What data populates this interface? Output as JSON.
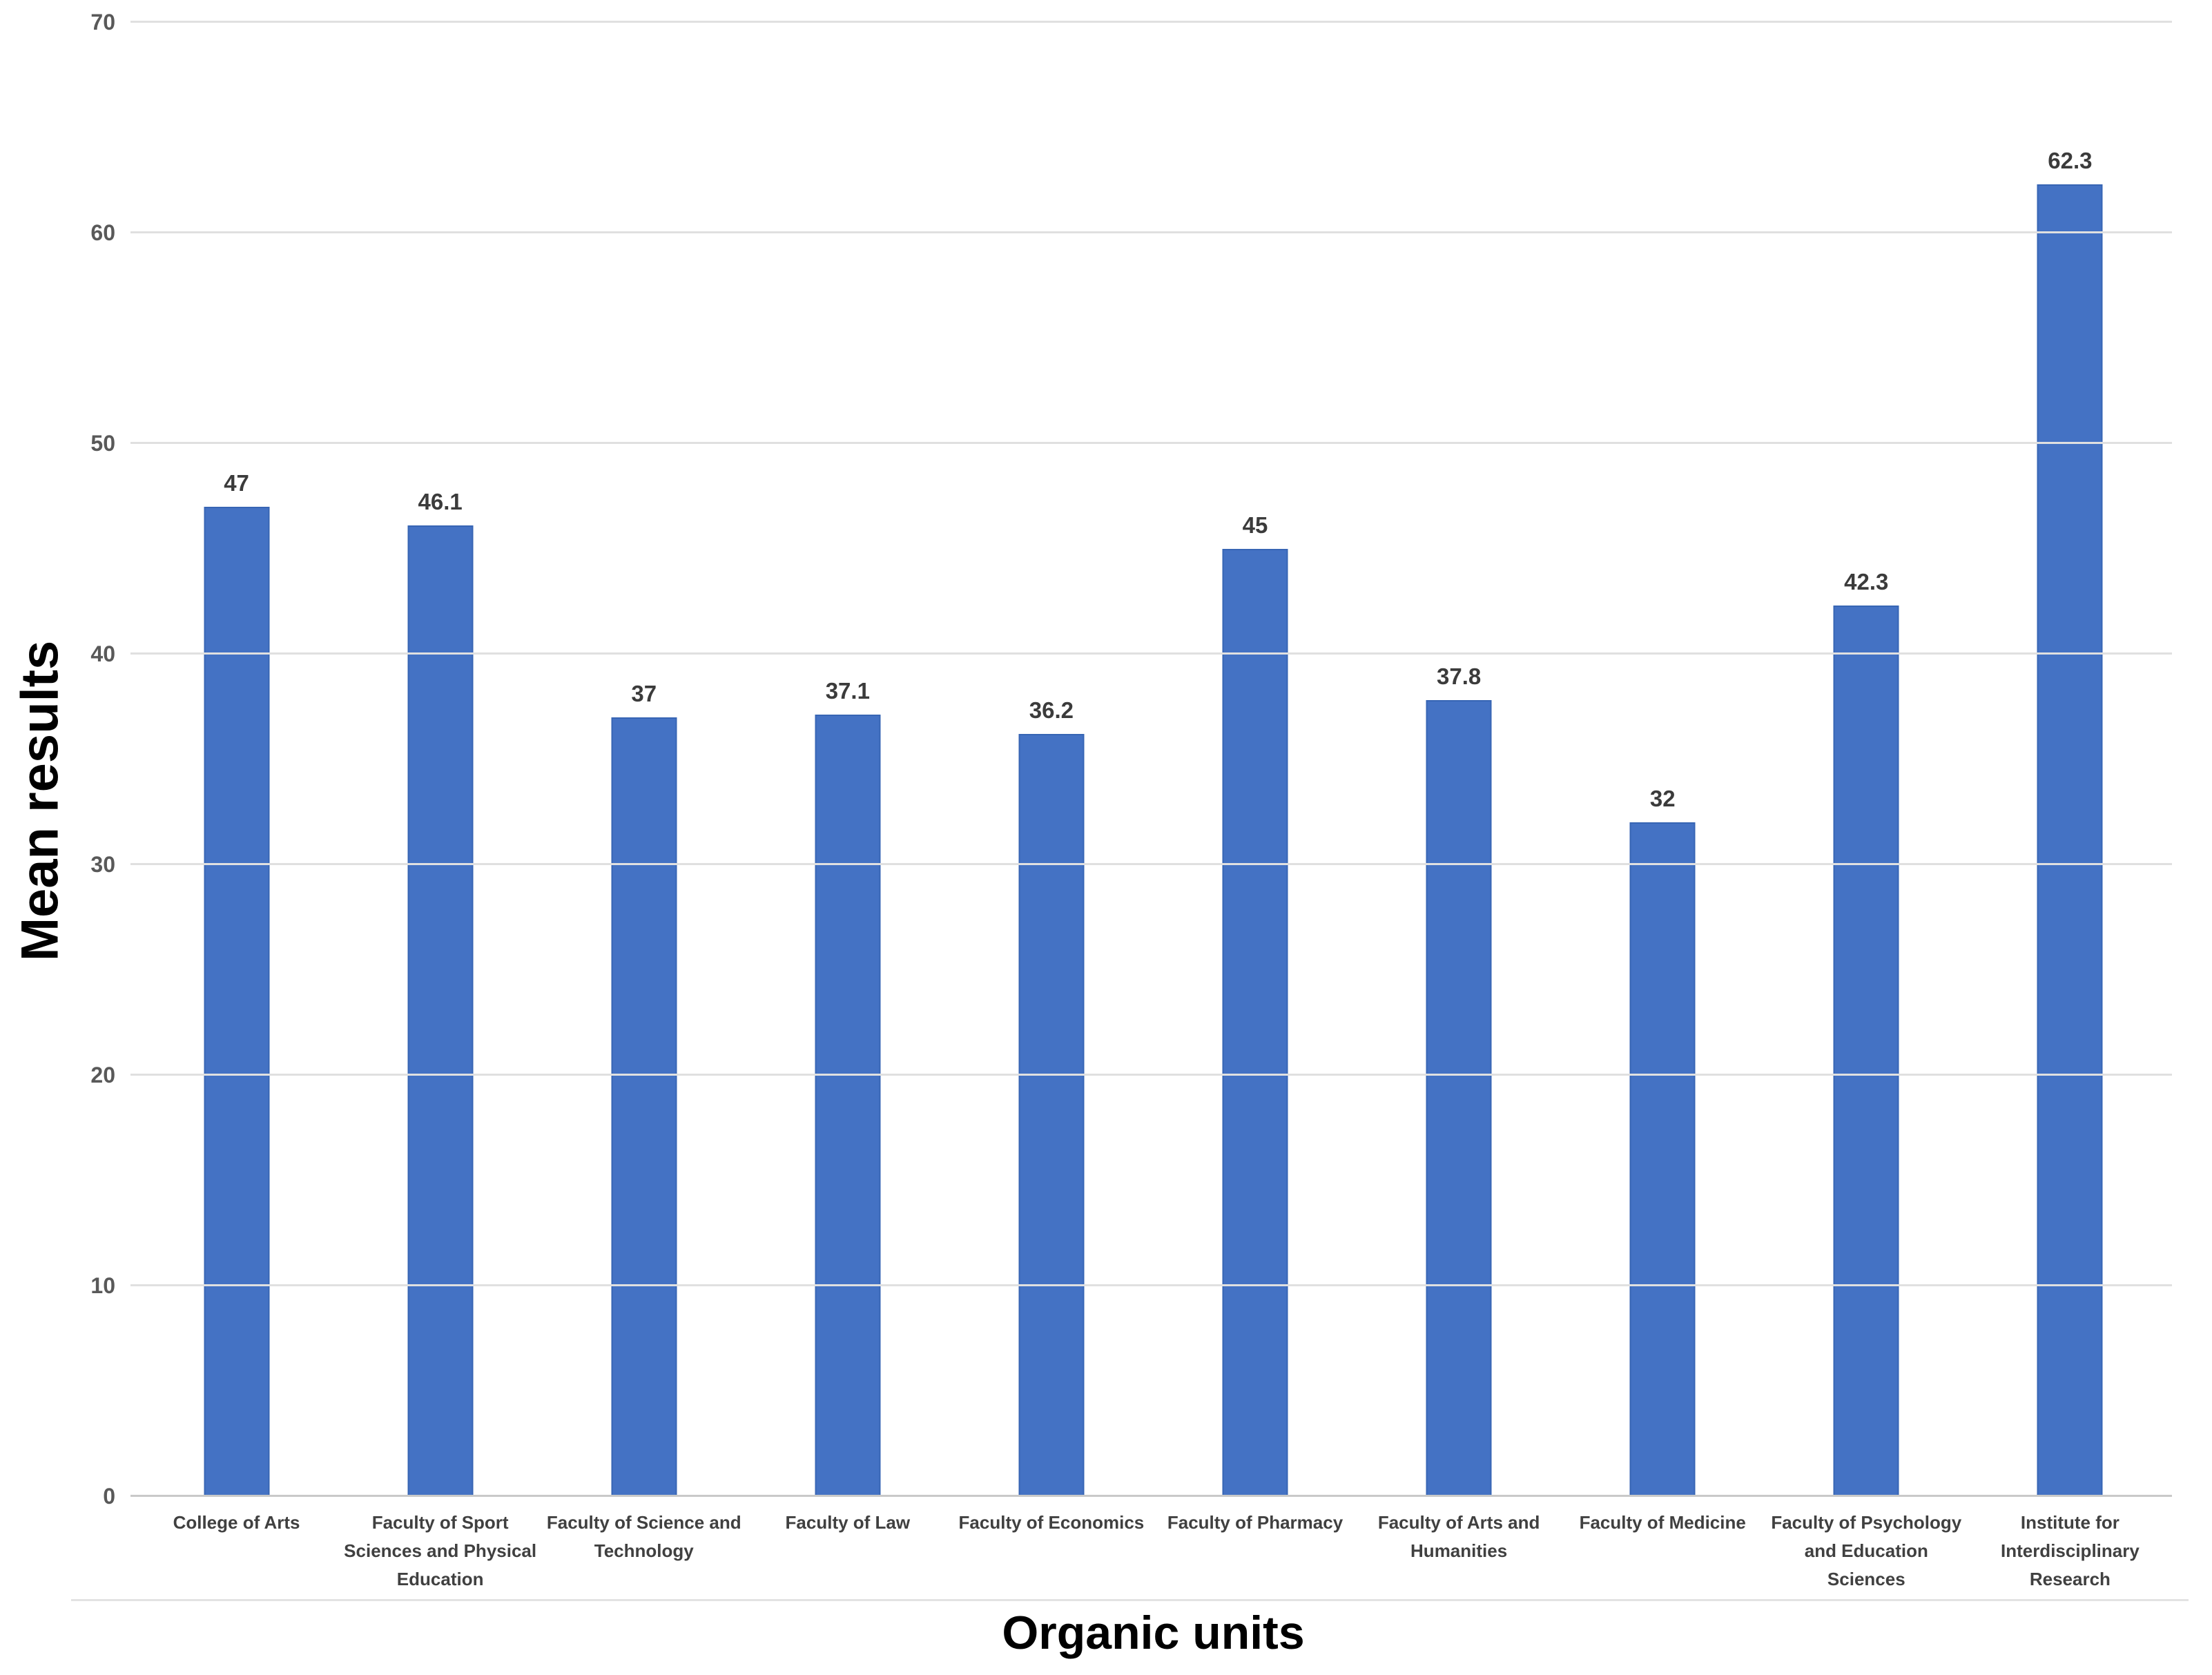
{
  "chart_data": {
    "type": "bar",
    "title": "",
    "xlabel": "Organic units",
    "ylabel": "Mean results",
    "categories": [
      "College of Arts",
      "Faculty of Sport Sciences and Physical Education",
      "Faculty of Science and Technology",
      "Faculty of Law",
      "Faculty of Economics",
      "Faculty of Pharmacy",
      "Faculty of Arts and Humanities",
      "Faculty of Medicine",
      "Faculty of Psychology and Education Sciences",
      "Institute for Interdisciplinary Research"
    ],
    "category_display_lines": [
      [
        "College of Arts"
      ],
      [
        "Faculty of Sport",
        "Sciences and Physical",
        "Education"
      ],
      [
        "Faculty of Science and",
        "Technology"
      ],
      [
        "Faculty of Law"
      ],
      [
        "Faculty of Economics"
      ],
      [
        "Faculty of Pharmacy"
      ],
      [
        "Faculty of Arts and",
        "Humanities"
      ],
      [
        "Faculty of Medicine"
      ],
      [
        "Faculty of Psychology",
        "and Education",
        "Sciences"
      ],
      [
        "Institute for",
        "Interdisciplinary",
        "Research"
      ]
    ],
    "values": [
      47,
      46.1,
      37,
      37.1,
      36.2,
      45,
      37.8,
      32,
      42.3,
      62.3
    ],
    "data_labels": [
      "47",
      "46.1",
      "37",
      "37.1",
      "36.2",
      "45",
      "37.8",
      "32",
      "42.3",
      "62.3"
    ],
    "ylim": [
      0,
      70
    ],
    "yticks": [
      0,
      10,
      20,
      30,
      40,
      50,
      60,
      70
    ],
    "grid": "horizontal",
    "legend": "none",
    "colors": {
      "bar_fill": "#4472C4",
      "bar_border": "#3765B4",
      "gridline": "#E0E0E0",
      "axis_line": "#C9C9C9",
      "tick_label": "#595959",
      "data_label": "#3B3B3B",
      "axis_title": "#000000",
      "background": "#FFFFFF"
    }
  }
}
